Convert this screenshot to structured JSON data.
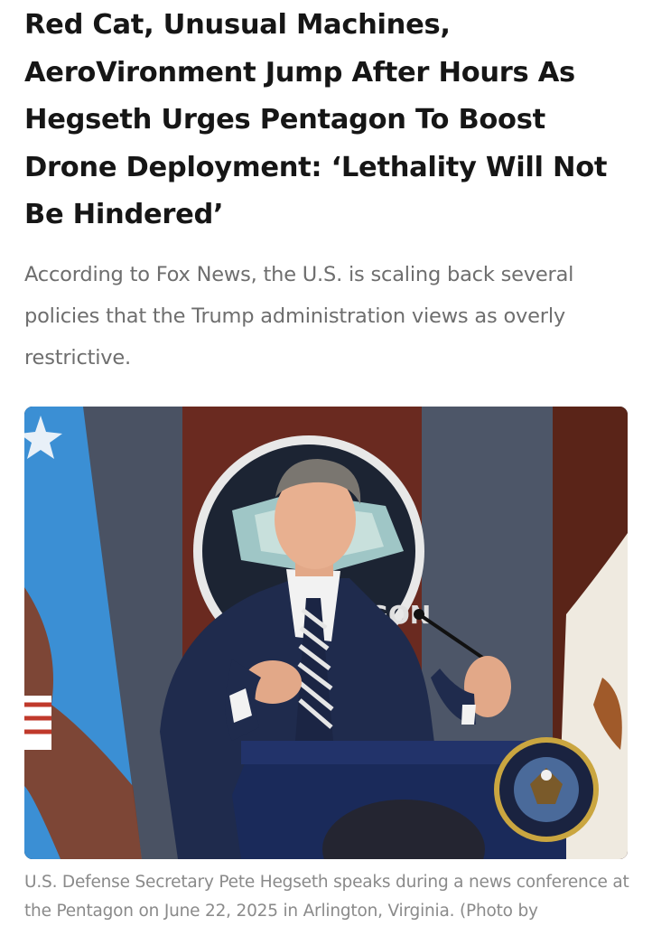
{
  "article": {
    "headline": "Red Cat, Unusual Machines, AeroVironment Jump After Hours As Hegseth Urges Pentagon To Boost Drone Deployment: ‘Lethality Will Not Be Hindered’",
    "dek": "According to Fox News, the U.S. is scaling back several policies that the Trump administration views as overly restrictive.",
    "image": {
      "subject": "man in navy suit speaking at podium with Pentagon seal behind",
      "backdrop_text": "GON",
      "caption": "U.S. Defense Secretary Pete Hegseth speaks during a news conference at the Pentagon on June 22, 2025 in Arlington, Virginia. (Photo by"
    }
  },
  "colors": {
    "headline": "#161616",
    "dek": "#6e6e6e",
    "caption": "#8a8a8a",
    "suit": "#1f2b4d",
    "curtain": "#6a2a20",
    "flag_blue": "#3b8fd4"
  }
}
